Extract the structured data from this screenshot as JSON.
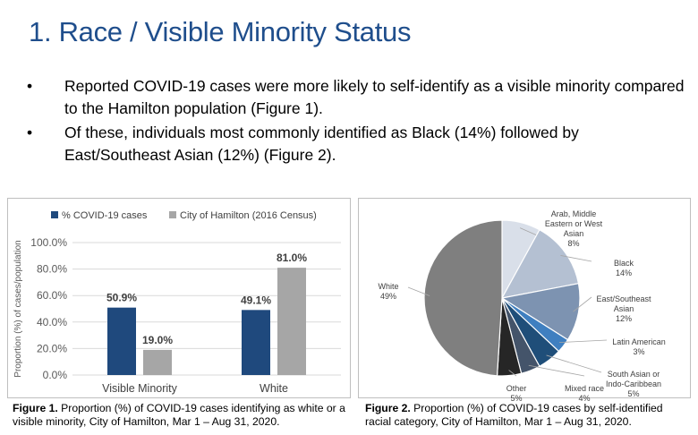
{
  "title": "1. Race / Visible Minority Status",
  "bullets": [
    {
      "marker": "•",
      "text": "Reported COVID-19 cases were more likely to self-identify as a visible minority compared to the Hamilton population (Figure 1)."
    },
    {
      "marker": "•",
      "text": "Of these, individuals most commonly identified as Black (14%) followed by East/Southeast Asian (12%) (Figure 2)."
    }
  ],
  "captions": {
    "fig1_label": "Figure 1.",
    "fig1_text": " Proportion (%) of COVID-19 cases identifying as white or a visible minority, City of Hamilton, Mar 1 – Aug 31, 2020.",
    "fig2_label": "Figure 2.",
    "fig2_text": " Proportion (%) of COVID-19 cases by self-identified racial category, City of Hamilton, Mar 1 – Aug 31, 2020."
  },
  "chart_data": [
    {
      "type": "bar",
      "categories": [
        "Visible Minority",
        "White"
      ],
      "series": [
        {
          "name": "% COVID-19 cases",
          "values": [
            50.9,
            49.1
          ],
          "labels": [
            "50.9%",
            "49.1%"
          ],
          "color": "#1f497d"
        },
        {
          "name": "City of Hamilton (2016 Census)",
          "values": [
            19.0,
            81.0
          ],
          "labels": [
            "19.0%",
            "81.0%"
          ],
          "color": "#a6a6a6"
        }
      ],
      "ylabel": "Proportion (%) of cases/population",
      "ylim": [
        0,
        100
      ],
      "yticks": [
        0,
        20,
        40,
        60,
        80,
        100
      ],
      "ytick_labels": [
        "0.0%",
        "20.0%",
        "40.0%",
        "60.0%",
        "80.0%",
        "100.0%"
      ],
      "grid": true,
      "legend": "top"
    },
    {
      "type": "pie",
      "slices": [
        {
          "label": [
            "Arab, Middle",
            "Eastern or West",
            "Asian"
          ],
          "pct": "8%",
          "value": 8,
          "color": "#d9dfe9"
        },
        {
          "label": [
            "Black"
          ],
          "pct": "14%",
          "value": 14,
          "color": "#b4c0d2"
        },
        {
          "label": [
            "East/Southeast",
            "Asian"
          ],
          "pct": "12%",
          "value": 12,
          "color": "#7d93b1"
        },
        {
          "label": [
            "Latin American"
          ],
          "pct": "3%",
          "value": 3,
          "color": "#3f7fc0"
        },
        {
          "label": [
            "South Asian or",
            "Indo-Caribbean"
          ],
          "pct": "5%",
          "value": 5,
          "color": "#1f4e79"
        },
        {
          "label": [
            "Mixed race"
          ],
          "pct": "4%",
          "value": 4,
          "color": "#44546a"
        },
        {
          "label": [
            "Other"
          ],
          "pct": "5%",
          "value": 5,
          "color": "#262626"
        },
        {
          "label": [
            "White"
          ],
          "pct": "49%",
          "value": 49,
          "color": "#7f7f7f"
        }
      ]
    }
  ]
}
